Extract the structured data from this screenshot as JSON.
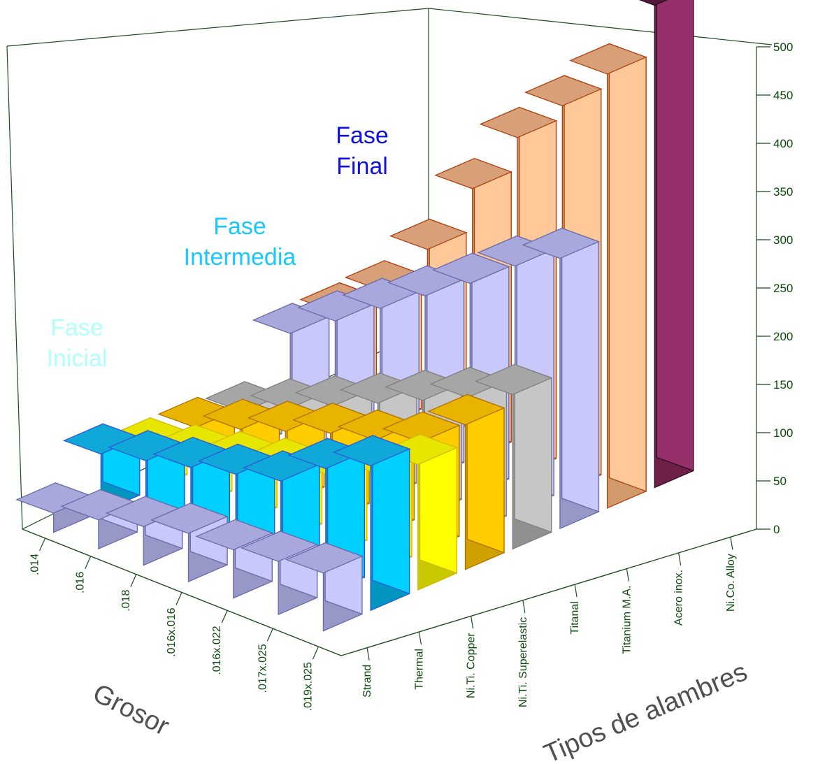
{
  "chart_data": {
    "type": "bar3d",
    "title": "",
    "xlabel": "Grosor",
    "zlabel": "Tipos de alambres",
    "ylabel": "",
    "ylim": [
      0,
      500
    ],
    "yticks": [
      0,
      50,
      100,
      150,
      200,
      250,
      300,
      350,
      400,
      450,
      500
    ],
    "thickness_categories": [
      ".014",
      ".016",
      ".018",
      ".016x.016",
      ".016x.022",
      ".017x.025",
      ".019x.025"
    ],
    "wire_types": [
      "Strand",
      "Thermal",
      "Ni.Ti. Copper",
      "Ni.Ti. Superelastic",
      "Titanal",
      "Titanium M.A.",
      "Acero inox.",
      "Ni.Co. Alloy"
    ],
    "series": [
      {
        "wire_type": "Strand",
        "values": [
          20,
          30,
          40,
          50,
          50,
          55,
          60
        ],
        "colors": {
          "front": "#c8c8fa",
          "side": "#9898c8",
          "top": "#a8a8dc",
          "edge": "#6a6aa8"
        }
      },
      {
        "wire_type": "Thermal",
        "values": [
          60,
          70,
          80,
          90,
          100,
          130,
          150
        ],
        "colors": {
          "front": "#00d0ff",
          "side": "#0096bf",
          "top": "#10a8d8",
          "edge": "#2a5ad8"
        }
      },
      {
        "wire_type": "Ni.Ti. Copper",
        "values": [
          45,
          55,
          65,
          75,
          85,
          105,
          130
        ],
        "colors": {
          "front": "#ffff00",
          "side": "#c8c800",
          "top": "#e6e600",
          "edge": "#d8b800"
        }
      },
      {
        "wire_type": "Ni.Ti. Superelastic",
        "values": [
          45,
          60,
          75,
          90,
          100,
          115,
          150
        ],
        "colors": {
          "front": "#ffcc00",
          "side": "#d0a000",
          "top": "#e8b400",
          "edge": "#b07000"
        }
      },
      {
        "wire_type": "Titanal",
        "values": [
          40,
          60,
          80,
          100,
          120,
          140,
          160
        ],
        "colors": {
          "front": "#c6c6c6",
          "side": "#909090",
          "top": "#a6a6a6",
          "edge": "#808080"
        }
      },
      {
        "wire_type": "Titanium M.A.",
        "values": [
          100,
          130,
          160,
          190,
          220,
          255,
          280
        ],
        "colors": {
          "front": "#c8c8fa",
          "side": "#9898c8",
          "top": "#a8a8dc",
          "edge": "#6a6aa8"
        }
      },
      {
        "wire_type": "Acero inox.",
        "values": [
          100,
          140,
          200,
          280,
          350,
          400,
          450
        ],
        "colors": {
          "front": "#ffc898",
          "side": "#d09a6a",
          "top": "#d8a078",
          "edge": "#b04010"
        }
      },
      {
        "wire_type": "Ni.Co. Alloy",
        "values": [
          null,
          null,
          null,
          null,
          null,
          null,
          500
        ],
        "colors": {
          "front": "#96306a",
          "side": "#6e2048",
          "top": "#55183a",
          "edge": "#2a0a1e"
        }
      }
    ],
    "annotations": [
      {
        "lines": [
          "Fase",
          "Inicial"
        ],
        "color": "#b0ffff"
      },
      {
        "lines": [
          "Fase",
          "Intermedia"
        ],
        "color": "#1ac8ff"
      },
      {
        "lines": [
          "Fase",
          "Final"
        ],
        "color": "#1010e0"
      }
    ],
    "grid": false
  }
}
